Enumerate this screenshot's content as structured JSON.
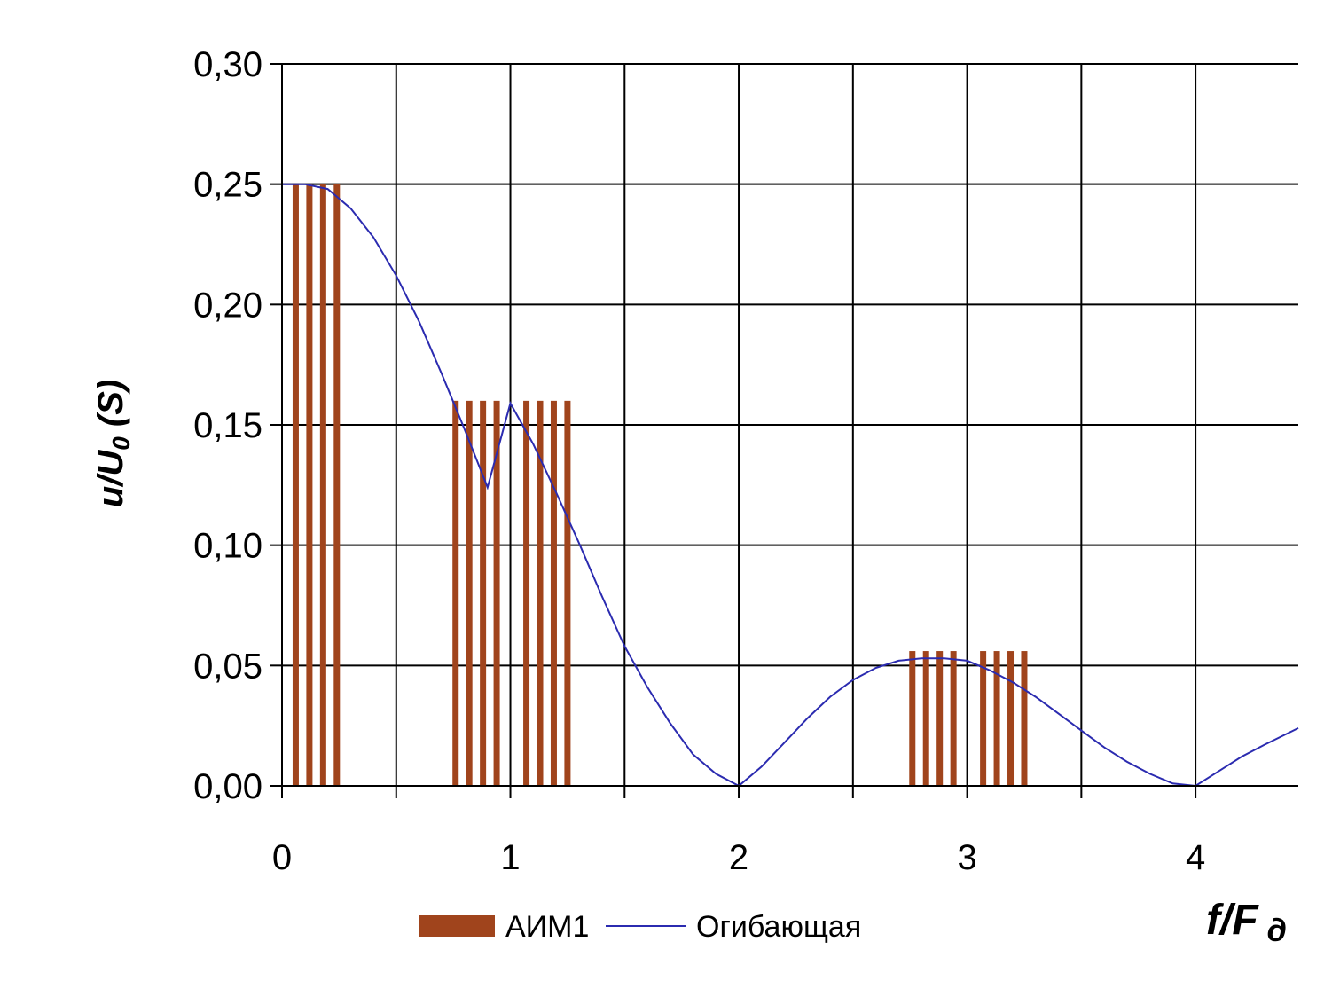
{
  "chart_data": {
    "type": "bar",
    "title": "",
    "xlabel": {
      "main": "f/F",
      "sub": "д"
    },
    "ylabel": {
      "pre": "u/U",
      "sub": "0",
      "post": " (S)"
    },
    "xlim": [
      0,
      4.45
    ],
    "ylim": [
      0,
      0.3
    ],
    "x_ticks": [
      0,
      1,
      2,
      3,
      4
    ],
    "x_tick_labels": [
      "0",
      "1",
      "2",
      "3",
      "4"
    ],
    "x_minor_ticks": [
      0.5,
      1.5,
      2.5,
      3.5
    ],
    "y_ticks": [
      0,
      0.05,
      0.1,
      0.15,
      0.2,
      0.25,
      0.3
    ],
    "y_tick_labels": [
      "0,00",
      "0,05",
      "0,10",
      "0,15",
      "0,20",
      "0,25",
      "0,30"
    ],
    "grid": true,
    "legend_position": "bottom",
    "colors": {
      "bars": "#a0441c",
      "envelope": "#2b2bb0",
      "grid": "#000000"
    },
    "series": [
      {
        "name": "АИМ1",
        "type": "bar",
        "x": [
          0.06,
          0.12,
          0.18,
          0.24,
          0.76,
          0.82,
          0.88,
          0.94,
          1.07,
          1.13,
          1.19,
          1.25,
          2.76,
          2.82,
          2.88,
          2.94,
          3.07,
          3.13,
          3.19,
          3.25
        ],
        "values": [
          0.25,
          0.25,
          0.25,
          0.25,
          0.16,
          0.16,
          0.16,
          0.16,
          0.16,
          0.16,
          0.16,
          0.16,
          0.056,
          0.056,
          0.056,
          0.056,
          0.056,
          0.056,
          0.056,
          0.056
        ]
      },
      {
        "name": "Огибающая",
        "type": "line",
        "x": [
          0,
          0.1,
          0.2,
          0.3,
          0.4,
          0.5,
          0.6,
          0.7,
          0.8,
          0.9,
          1.0,
          1.1,
          1.2,
          1.3,
          1.4,
          1.5,
          1.6,
          1.7,
          1.8,
          1.9,
          2.0,
          2.1,
          2.2,
          2.3,
          2.4,
          2.5,
          2.6,
          2.7,
          2.8,
          2.9,
          3.0,
          3.1,
          3.2,
          3.3,
          3.4,
          3.5,
          3.6,
          3.7,
          3.8,
          3.9,
          4.0,
          4.1,
          4.2,
          4.3,
          4.45
        ],
        "values": [
          0.25,
          0.25,
          0.248,
          0.24,
          0.228,
          0.212,
          0.193,
          0.171,
          0.148,
          0.124,
          0.159,
          0.142,
          0.122,
          0.101,
          0.079,
          0.058,
          0.041,
          0.026,
          0.013,
          0.005,
          0.0,
          0.008,
          0.018,
          0.028,
          0.037,
          0.044,
          0.049,
          0.052,
          0.053,
          0.053,
          0.052,
          0.048,
          0.043,
          0.037,
          0.03,
          0.023,
          0.016,
          0.01,
          0.005,
          0.001,
          0.0,
          0.006,
          0.012,
          0.017,
          0.024
        ]
      }
    ]
  }
}
